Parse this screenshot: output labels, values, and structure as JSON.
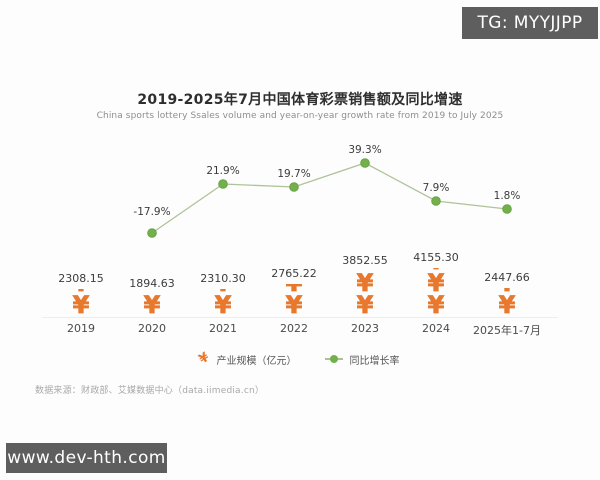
{
  "watermarks": {
    "top_right": "TG: MYYJJPP",
    "bottom_left": "www.dev-hth.com"
  },
  "chart_data": {
    "type": "line",
    "title": "2019-2025年7月中国体育彩票销售额及同比增速",
    "subtitle": "China sports lottery Ssales volume and year-on-year growth rate from 2019 to July 2025",
    "source": "数据来源：财政部、艾媒数据中心（data.iimedia.cn）",
    "categories": [
      "2019",
      "2020",
      "2021",
      "2022",
      "2023",
      "2024",
      "2025年1-7月"
    ],
    "series": [
      {
        "name": "产业规模（亿元）",
        "type": "pictograph",
        "unit": "亿元",
        "color": "#e7782d",
        "values": [
          2308.15,
          1894.63,
          2310.3,
          2765.22,
          3852.55,
          4155.3,
          2447.66
        ],
        "labels": [
          "2308.15",
          "1894.63",
          "2310.30",
          "2765.22",
          "3852.55",
          "4155.30",
          "2447.66"
        ]
      },
      {
        "name": "同比增长率",
        "type": "line",
        "unit": "%",
        "color": "#73b04b",
        "line_color": "#adc399",
        "values": [
          null,
          -17.9,
          21.9,
          19.7,
          39.3,
          7.9,
          1.8
        ],
        "labels": [
          "",
          "-17.9%",
          "21.9%",
          "19.7%",
          "39.3%",
          "7.9%",
          "1.8%"
        ]
      }
    ],
    "legend": [
      {
        "label": "产业规模（亿元）",
        "marker": "yuan-pictograph",
        "color": "#e7782d"
      },
      {
        "label": "同比增长率",
        "marker": "line-dot",
        "color": "#73b04b"
      }
    ],
    "legend_position": "bottom",
    "grid": false,
    "pictograph_symbol": "¥",
    "pictograph_unit_value": 1900
  }
}
